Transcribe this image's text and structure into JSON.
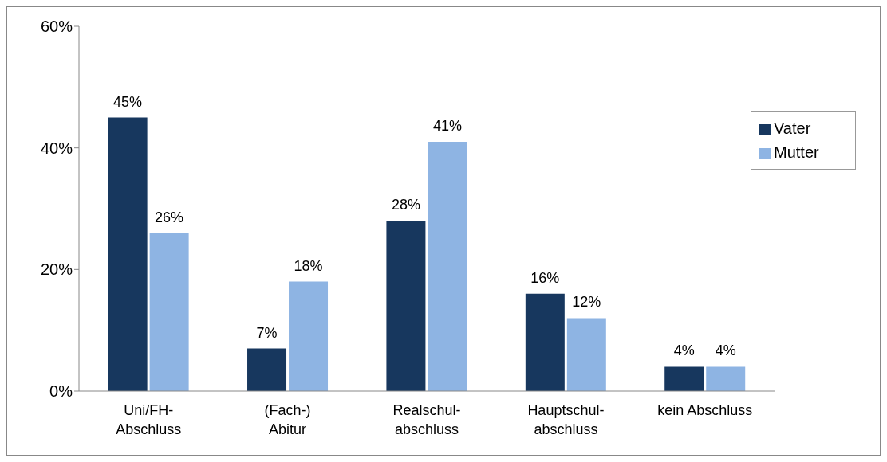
{
  "chart_data": {
    "type": "bar",
    "categories": [
      "Uni/FH-\nAbschluss",
      "(Fach-)\nAbitur",
      "Realschul-\nabschluss",
      "Hauptschul-\nabschluss",
      "kein Abschluss"
    ],
    "series": [
      {
        "name": "Vater",
        "color": "#17375e",
        "values": [
          45,
          7,
          28,
          16,
          4
        ],
        "value_labels": [
          "45%",
          "7%",
          "28%",
          "16%",
          "4%"
        ]
      },
      {
        "name": "Mutter",
        "color": "#8eb4e3",
        "values": [
          26,
          18,
          41,
          12,
          4
        ],
        "value_labels": [
          "26%",
          "18%",
          "41%",
          "12%",
          "4%"
        ]
      }
    ],
    "ylim": [
      0,
      60
    ],
    "yticks": [
      {
        "value": 0,
        "label": "0%"
      },
      {
        "value": 20,
        "label": "20%"
      },
      {
        "value": 40,
        "label": "40%"
      },
      {
        "value": 60,
        "label": "60%"
      }
    ],
    "grid": false,
    "legend": "top right"
  }
}
